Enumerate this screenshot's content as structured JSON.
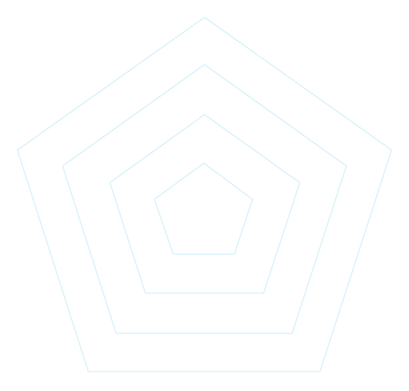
{
  "diagram": {
    "type": "concentric-pentagons",
    "ring_count": 4,
    "stroke_color": "#d6f1fa",
    "background_color": "#ffffff"
  }
}
